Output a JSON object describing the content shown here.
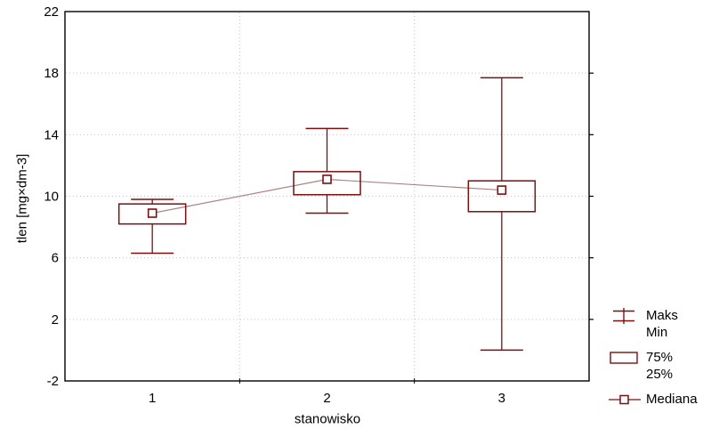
{
  "figure": {
    "background": "#ffffff",
    "accent_color": "#7a0f10",
    "median_line_color": "#aa8585",
    "grid_color": "#c4c4c4",
    "frame_color": "#000000",
    "text_color": "#000000"
  },
  "chart_data": {
    "type": "box",
    "title": "",
    "xlabel": "stanowisko",
    "ylabel": "tlen [mg×dm-3]",
    "categories": [
      "1",
      "2",
      "3"
    ],
    "ylim": [
      -2,
      22
    ],
    "yticks": [
      22,
      18,
      14,
      10,
      6,
      2,
      -2
    ],
    "grid": "dotted horizontal lines at interior y-ticks, dotted vertical category separators",
    "legend_position": "right-bottom",
    "series": [
      {
        "category": "1",
        "min": 6.3,
        "q1": 8.2,
        "median": 8.9,
        "q3": 9.5,
        "max": 9.8
      },
      {
        "category": "2",
        "min": 8.9,
        "q1": 10.1,
        "median": 11.1,
        "q3": 11.6,
        "max": 14.4
      },
      {
        "category": "3",
        "min": 0.0,
        "q1": 9.0,
        "median": 10.4,
        "q3": 11.0,
        "max": 17.7
      }
    ],
    "legend": [
      {
        "name": "maks-min",
        "glyph": "whisker",
        "labels": [
          "Maks",
          "Min"
        ]
      },
      {
        "name": "p75-p25",
        "glyph": "box",
        "labels": [
          "75%",
          "25%"
        ]
      },
      {
        "name": "mediana",
        "glyph": "median-marker",
        "labels": [
          "Mediana"
        ]
      }
    ]
  }
}
